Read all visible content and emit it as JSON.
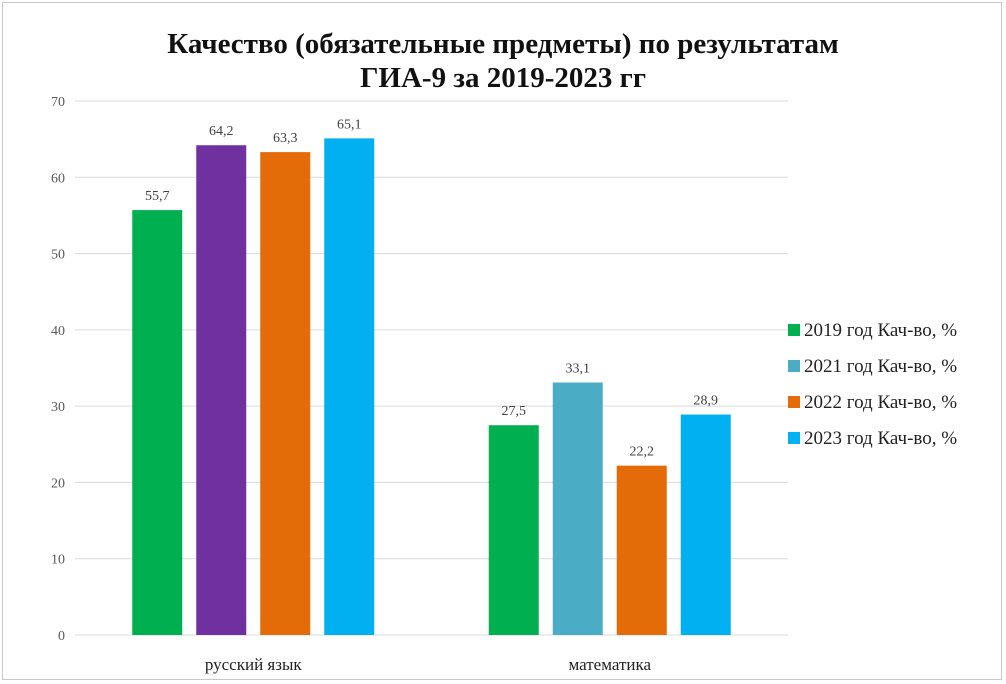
{
  "chart_data": {
    "type": "bar",
    "title": "Качество (обязательные предметы) по результатам ГИА-9 за 2019-2023 гг",
    "title_lines": [
      "Качество (обязательные предметы) по результатам",
      "ГИА-9 за 2019-2023 гг"
    ],
    "categories": [
      "русский язык",
      "математика"
    ],
    "series": [
      {
        "name": "2019 год Кач-во, %",
        "color": "#00b050",
        "values": [
          55.7,
          27.5
        ],
        "labels": [
          "55,7",
          "27,5"
        ]
      },
      {
        "name": "2021 год Кач-во, %",
        "color": "#7030a0",
        "values": [
          64.2,
          33.1
        ],
        "labels": [
          "64,2",
          "33,1"
        ],
        "point_colors": [
          "#7030a0",
          "#4bacc6"
        ]
      },
      {
        "name": "2022 год Кач-во, %",
        "color": "#e36c09",
        "values": [
          63.3,
          22.2
        ],
        "labels": [
          "63,3",
          "22,2"
        ]
      },
      {
        "name": "2023 год Кач-во, %",
        "color": "#00b0f0",
        "values": [
          65.1,
          28.9
        ],
        "labels": [
          "65,1",
          "28,9"
        ]
      }
    ],
    "legend_colors": [
      "#00b050",
      "#4bacc6",
      "#e36c09",
      "#00b0f0"
    ],
    "ylim": [
      0,
      70
    ],
    "yticks": [
      0,
      10,
      20,
      30,
      40,
      50,
      60,
      70
    ],
    "grid": true,
    "legend_position": "right",
    "xlabel": "",
    "ylabel": ""
  }
}
